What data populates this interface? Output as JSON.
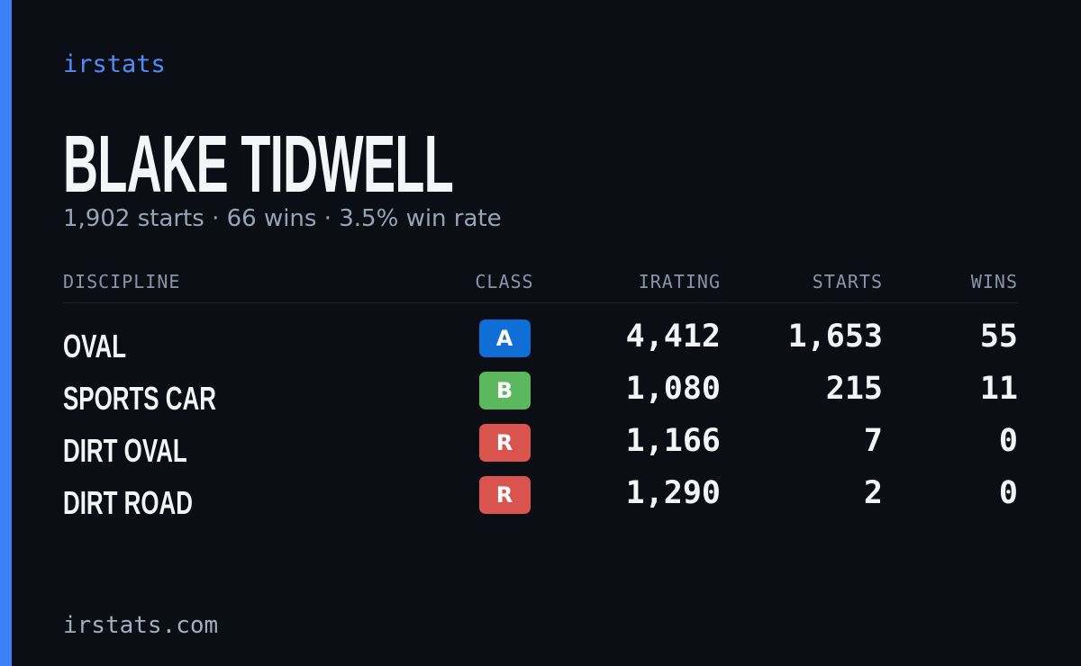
{
  "brand": "irstats",
  "title": "BLAKE TIDWELL",
  "subtitle": "1,902 starts · 66 wins · 3.5% win rate",
  "table": {
    "columns": [
      "DISCIPLINE",
      "CLASS",
      "IRATING",
      "STARTS",
      "WINS"
    ],
    "rows": [
      [
        "OVAL",
        "A",
        "4,412",
        "1,653",
        "55"
      ],
      [
        "SPORTS CAR",
        "B",
        "1,080",
        "215",
        "11"
      ],
      [
        "DIRT OVAL",
        "R",
        "1,166",
        "7",
        "0"
      ],
      [
        "DIRT ROAD",
        "R",
        "1,290",
        "2",
        "0"
      ]
    ]
  },
  "footer": "irstats.com"
}
